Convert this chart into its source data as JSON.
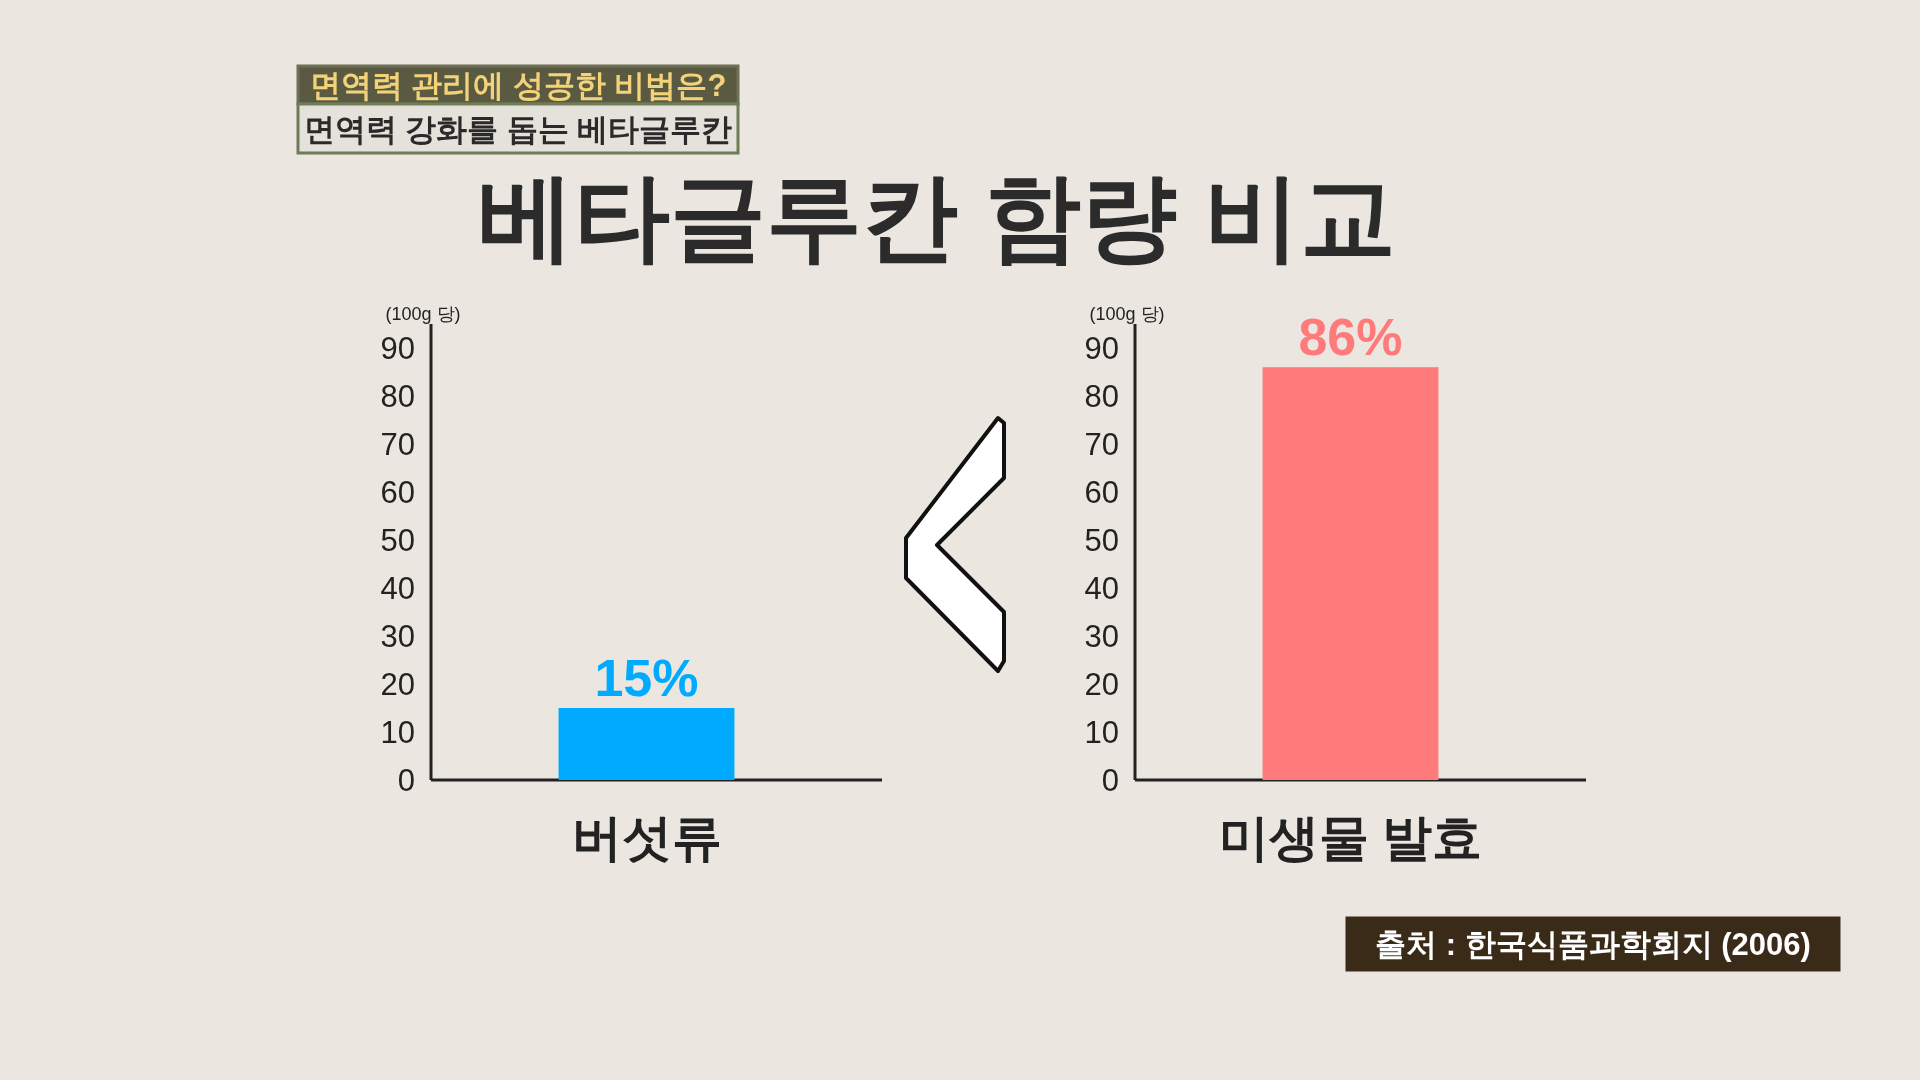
{
  "chart_data": [
    {
      "type": "bar",
      "title": "베타글루칸 함량 비교",
      "ylabel": "(100g 당)",
      "categories": [
        "버섯류"
      ],
      "values": [
        15
      ],
      "colors": [
        "#00aaff"
      ],
      "value_labels": [
        "15%"
      ],
      "ylim": [
        0,
        95
      ],
      "yticks": [
        0,
        10,
        20,
        30,
        40,
        50,
        60,
        70,
        80,
        90
      ],
      "annotations": [
        "면역력 관리에 성공한 비법은?",
        "면역력 강화를 돕는 베타글루칸"
      ]
    },
    {
      "type": "bar",
      "ylabel": "(100g 당)",
      "categories": [
        "미생물 발효"
      ],
      "values": [
        86
      ],
      "colors": [
        "#ff7b7b"
      ],
      "value_labels": [
        "86%"
      ],
      "ylim": [
        0,
        95
      ],
      "yticks": [
        0,
        10,
        20,
        30,
        40,
        50,
        60,
        70,
        80,
        90
      ],
      "annotations": [
        "출처 : 한국식품과학회지 (2006)"
      ]
    }
  ]
}
